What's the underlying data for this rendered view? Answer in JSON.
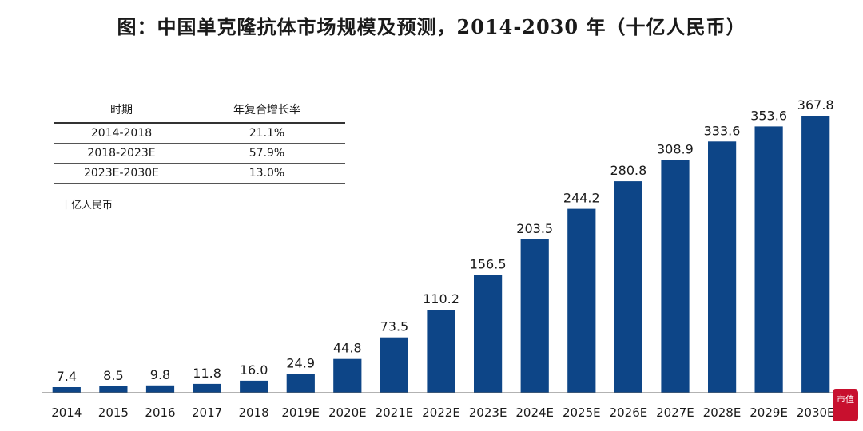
{
  "title": "图：中国单克隆抗体市场规模及预测，2014-2030 年（十亿人民币）",
  "table": {
    "headers": [
      "时期",
      "年复合增长率"
    ],
    "rows": [
      [
        "2014-2018",
        "21.1%"
      ],
      [
        "2018-2023E",
        "57.9%"
      ],
      [
        "2023E-2030E",
        "13.0%"
      ]
    ]
  },
  "unit_label": "十亿人民币",
  "watermark": "市值",
  "chart_data": {
    "type": "bar",
    "categories": [
      "2014",
      "2015",
      "2016",
      "2017",
      "2018",
      "2019E",
      "2020E",
      "2021E",
      "2022E",
      "2023E",
      "2024E",
      "2025E",
      "2026E",
      "2027E",
      "2028E",
      "2029E",
      "2030E"
    ],
    "values": [
      7.4,
      8.5,
      9.8,
      11.8,
      16.0,
      24.9,
      44.8,
      73.5,
      110.2,
      156.5,
      203.5,
      244.2,
      280.8,
      308.9,
      333.6,
      353.6,
      367.8
    ],
    "value_labels": [
      "7.4",
      "8.5",
      "9.8",
      "11.8",
      "16.0",
      "24.9",
      "44.8",
      "73.5",
      "110.2",
      "156.5",
      "203.5",
      "244.2",
      "280.8",
      "308.9",
      "333.6",
      "353.6",
      "367.8"
    ],
    "ylim": [
      0,
      367.8
    ],
    "bar_color": "#0d4587",
    "grid": false,
    "legend": "none"
  }
}
